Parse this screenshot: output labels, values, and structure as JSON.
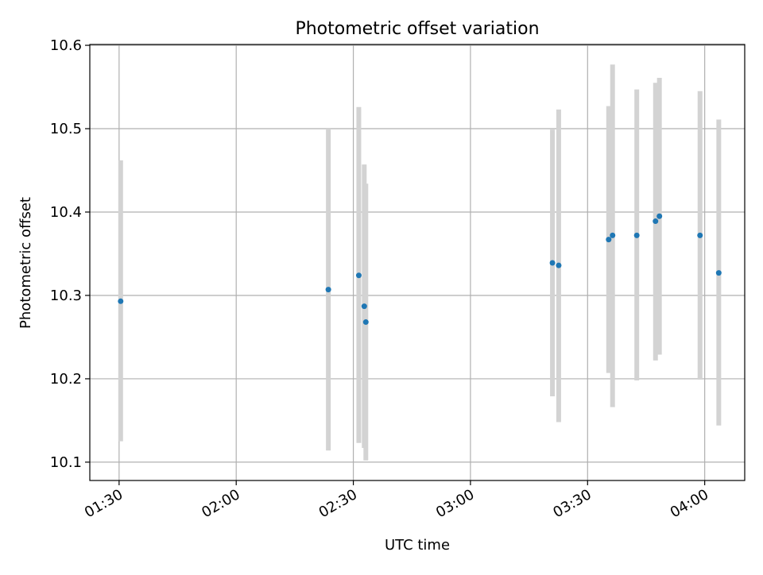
{
  "chart_data": {
    "type": "scatter",
    "title": "Photometric offset variation",
    "xlabel": "UTC time",
    "ylabel": "Photometric offset",
    "x_ticks": [
      "01:30",
      "02:00",
      "02:30",
      "03:00",
      "03:30",
      "04:00"
    ],
    "y_ticks": [
      "10.1",
      "10.2",
      "10.3",
      "10.4",
      "10.5",
      "10.6"
    ],
    "xlim": [
      "01:22:30",
      "04:10:15"
    ],
    "ylim": [
      10.078,
      10.601
    ],
    "grid": true,
    "point_color": "#1f77b4",
    "errorbar_color": "#d3d3d3",
    "series": [
      {
        "points": [
          {
            "x": "01:30:24",
            "y": 10.293,
            "yerr_low": 10.125,
            "yerr_high": 10.462
          },
          {
            "x": "02:23:36",
            "y": 10.307,
            "yerr_low": 10.114,
            "yerr_high": 10.5
          },
          {
            "x": "02:31:24",
            "y": 10.324,
            "yerr_low": 10.123,
            "yerr_high": 10.526
          },
          {
            "x": "02:32:48",
            "y": 10.287,
            "yerr_low": 10.117,
            "yerr_high": 10.457
          },
          {
            "x": "02:33:12",
            "y": 10.268,
            "yerr_low": 10.102,
            "yerr_high": 10.434
          },
          {
            "x": "03:21:00",
            "y": 10.339,
            "yerr_low": 10.179,
            "yerr_high": 10.499
          },
          {
            "x": "03:22:36",
            "y": 10.336,
            "yerr_low": 10.148,
            "yerr_high": 10.523
          },
          {
            "x": "03:35:24",
            "y": 10.367,
            "yerr_low": 10.207,
            "yerr_high": 10.527
          },
          {
            "x": "03:36:24",
            "y": 10.372,
            "yerr_low": 10.166,
            "yerr_high": 10.577
          },
          {
            "x": "03:42:36",
            "y": 10.372,
            "yerr_low": 10.198,
            "yerr_high": 10.547
          },
          {
            "x": "03:47:24",
            "y": 10.389,
            "yerr_low": 10.222,
            "yerr_high": 10.555
          },
          {
            "x": "03:48:24",
            "y": 10.395,
            "yerr_low": 10.229,
            "yerr_high": 10.561
          },
          {
            "x": "03:58:48",
            "y": 10.372,
            "yerr_low": 10.199,
            "yerr_high": 10.545
          },
          {
            "x": "04:03:36",
            "y": 10.327,
            "yerr_low": 10.144,
            "yerr_high": 10.511
          }
        ]
      }
    ]
  }
}
